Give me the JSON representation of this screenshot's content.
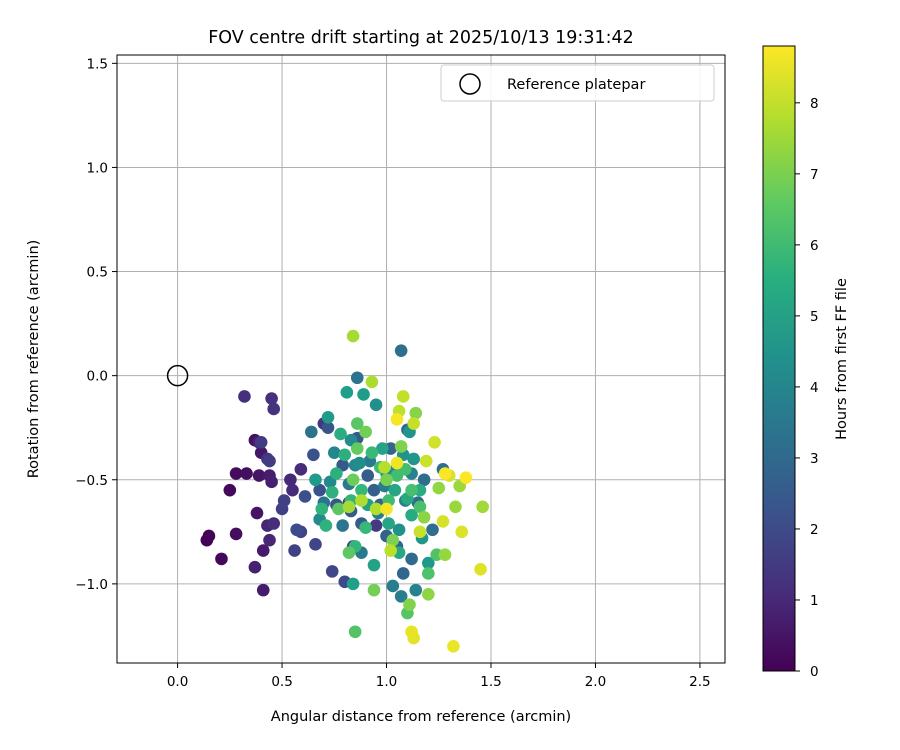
{
  "chart_data": {
    "type": "scatter",
    "title": "FOV centre drift starting at 2025/10/13 19:31:42",
    "xlabel": "Angular distance from reference (arcmin)",
    "ylabel": "Rotation from reference (arcmin)",
    "xlim": [
      -0.29,
      2.62
    ],
    "ylim": [
      -1.38,
      1.54
    ],
    "xticks": [
      0.0,
      0.5,
      1.0,
      1.5,
      2.0,
      2.5
    ],
    "xtick_labels": [
      "0.0",
      "0.5",
      "1.0",
      "1.5",
      "2.0",
      "2.5"
    ],
    "yticks": [
      -1.0,
      -0.5,
      0.0,
      0.5,
      1.0,
      1.5
    ],
    "ytick_labels": [
      "−1.0",
      "−0.5",
      "0.0",
      "0.5",
      "1.0",
      "1.5"
    ],
    "grid": true,
    "legend": {
      "position": "top-right",
      "entries": [
        "Reference platepar"
      ]
    },
    "reference_point": {
      "x": 0.0,
      "y": 0.0,
      "label": "Reference platepar"
    },
    "colorbar": {
      "label": "Hours from first FF file",
      "colormap": "viridis",
      "range": [
        0,
        8.8
      ],
      "ticks": [
        0,
        1,
        2,
        3,
        4,
        5,
        6,
        7,
        8
      ],
      "tick_labels": [
        "0",
        "1",
        "2",
        "3",
        "4",
        "5",
        "6",
        "7",
        "8"
      ]
    },
    "points_note": "each point is [x_arcmin, y_arcmin, hours]",
    "points": [
      [
        0.14,
        -0.79,
        0.05
      ],
      [
        0.15,
        -0.77,
        0.1
      ],
      [
        0.21,
        -0.88,
        0.15
      ],
      [
        0.25,
        -0.55,
        0.2
      ],
      [
        0.28,
        -0.47,
        0.25
      ],
      [
        0.28,
        -0.76,
        0.3
      ],
      [
        0.33,
        -0.47,
        0.35
      ],
      [
        0.37,
        -0.31,
        0.4
      ],
      [
        0.38,
        -0.66,
        0.45
      ],
      [
        0.39,
        -0.48,
        0.5
      ],
      [
        0.4,
        -0.37,
        0.55
      ],
      [
        0.41,
        -0.84,
        0.6
      ],
      [
        0.41,
        -1.03,
        0.65
      ],
      [
        0.44,
        -0.48,
        0.7
      ],
      [
        0.45,
        -0.51,
        0.75
      ],
      [
        0.37,
        -0.92,
        0.8
      ],
      [
        0.39,
        -0.32,
        0.85
      ],
      [
        0.43,
        -0.72,
        0.9
      ],
      [
        0.44,
        -0.79,
        0.95
      ],
      [
        0.54,
        -0.5,
        1.0
      ],
      [
        0.55,
        -0.55,
        1.05
      ],
      [
        0.59,
        -0.45,
        1.1
      ],
      [
        0.46,
        -0.71,
        1.15
      ],
      [
        0.32,
        -0.1,
        1.2
      ],
      [
        0.45,
        -0.11,
        1.25
      ],
      [
        0.46,
        -0.16,
        1.3
      ],
      [
        0.43,
        -0.4,
        1.35
      ],
      [
        0.7,
        -0.23,
        1.4
      ],
      [
        0.82,
        -0.61,
        1.45
      ],
      [
        0.95,
        -0.72,
        1.5
      ],
      [
        0.4,
        -0.32,
        1.55
      ],
      [
        0.44,
        -0.41,
        1.6
      ],
      [
        0.5,
        -0.64,
        1.65
      ],
      [
        0.51,
        -0.6,
        1.7
      ],
      [
        0.56,
        -0.84,
        1.75
      ],
      [
        0.59,
        -0.75,
        1.8
      ],
      [
        0.66,
        -0.81,
        1.85
      ],
      [
        0.74,
        -0.94,
        1.9
      ],
      [
        0.8,
        -0.99,
        1.95
      ],
      [
        0.84,
        -0.82,
        2.0
      ],
      [
        0.57,
        -0.74,
        2.1
      ],
      [
        0.61,
        -0.58,
        2.15
      ],
      [
        0.65,
        -0.38,
        2.2
      ],
      [
        0.68,
        -0.55,
        2.25
      ],
      [
        0.72,
        -0.25,
        2.3
      ],
      [
        0.76,
        -0.62,
        2.35
      ],
      [
        0.79,
        -0.43,
        2.4
      ],
      [
        0.83,
        -0.65,
        2.45
      ],
      [
        0.86,
        -0.3,
        2.5
      ],
      [
        0.88,
        -0.71,
        2.55
      ],
      [
        0.91,
        -0.48,
        2.6
      ],
      [
        0.94,
        -0.55,
        2.65
      ],
      [
        0.97,
        -0.62,
        2.7
      ],
      [
        1.0,
        -0.77,
        2.75
      ],
      [
        1.02,
        -0.35,
        2.8
      ],
      [
        1.05,
        -0.82,
        2.85
      ],
      [
        1.08,
        -0.95,
        2.9
      ],
      [
        1.1,
        -0.26,
        2.95
      ],
      [
        1.12,
        -0.88,
        3.0
      ],
      [
        1.15,
        -0.61,
        3.05
      ],
      [
        1.18,
        -0.5,
        3.1
      ],
      [
        1.22,
        -0.74,
        3.15
      ],
      [
        1.27,
        -0.45,
        3.2
      ],
      [
        1.07,
        0.12,
        3.25
      ],
      [
        0.86,
        -0.01,
        3.3
      ],
      [
        0.64,
        -0.27,
        3.35
      ],
      [
        0.7,
        -0.61,
        3.4
      ],
      [
        0.79,
        -0.72,
        3.45
      ],
      [
        0.82,
        -0.52,
        3.5
      ],
      [
        0.88,
        -0.85,
        3.55
      ],
      [
        0.92,
        -0.41,
        3.6
      ],
      [
        0.96,
        -0.66,
        3.65
      ],
      [
        0.99,
        -0.53,
        3.7
      ],
      [
        1.03,
        -1.01,
        3.75
      ],
      [
        1.07,
        -1.06,
        3.8
      ],
      [
        1.09,
        -0.6,
        3.85
      ],
      [
        1.12,
        -0.47,
        3.9
      ],
      [
        1.14,
        -1.03,
        3.95
      ],
      [
        1.05,
        -0.44,
        4.0
      ],
      [
        0.85,
        -0.43,
        4.05
      ],
      [
        0.75,
        -0.37,
        4.1
      ],
      [
        0.73,
        -0.51,
        4.15
      ],
      [
        0.68,
        -0.69,
        4.2
      ],
      [
        0.83,
        -0.31,
        4.25
      ],
      [
        0.87,
        -0.42,
        4.3
      ],
      [
        0.95,
        -0.14,
        4.35
      ],
      [
        1.0,
        -0.47,
        4.4
      ],
      [
        1.06,
        -0.74,
        4.45
      ],
      [
        1.08,
        -0.38,
        4.5
      ],
      [
        1.11,
        -0.27,
        4.55
      ],
      [
        1.13,
        -0.4,
        4.6
      ],
      [
        1.17,
        -0.78,
        4.65
      ],
      [
        1.2,
        -0.9,
        4.7
      ],
      [
        0.72,
        -0.2,
        4.75
      ],
      [
        0.66,
        -0.5,
        4.8
      ],
      [
        0.89,
        -0.09,
        4.85
      ],
      [
        0.81,
        -0.08,
        4.9
      ],
      [
        0.84,
        -1.0,
        4.95
      ],
      [
        0.91,
        -0.62,
        5.0
      ],
      [
        0.94,
        -0.91,
        5.05
      ],
      [
        0.98,
        -0.35,
        5.1
      ],
      [
        1.01,
        -0.71,
        5.15
      ],
      [
        1.04,
        -0.55,
        5.2
      ],
      [
        1.06,
        -0.85,
        5.25
      ],
      [
        1.1,
        -0.59,
        5.3
      ],
      [
        1.12,
        -0.67,
        5.35
      ],
      [
        1.16,
        -0.55,
        5.4
      ],
      [
        0.78,
        -0.28,
        5.45
      ],
      [
        0.8,
        -0.38,
        5.5
      ],
      [
        0.76,
        -0.47,
        5.55
      ],
      [
        0.74,
        -0.56,
        5.6
      ],
      [
        0.71,
        -0.72,
        5.65
      ],
      [
        0.69,
        -0.64,
        5.7
      ],
      [
        0.83,
        -0.6,
        5.75
      ],
      [
        0.85,
        -0.82,
        5.8
      ],
      [
        0.88,
        -0.55,
        5.85
      ],
      [
        0.9,
        -0.73,
        5.9
      ],
      [
        0.93,
        -0.37,
        5.95
      ],
      [
        0.97,
        -0.44,
        6.0
      ],
      [
        1.01,
        -0.6,
        6.05
      ],
      [
        1.05,
        -0.48,
        6.1
      ],
      [
        1.09,
        -0.45,
        6.15
      ],
      [
        1.12,
        -0.55,
        6.2
      ],
      [
        1.16,
        -0.63,
        6.25
      ],
      [
        1.2,
        -0.95,
        6.3
      ],
      [
        1.24,
        -0.86,
        6.35
      ],
      [
        0.85,
        -1.23,
        6.4
      ],
      [
        1.1,
        -1.14,
        6.45
      ],
      [
        0.86,
        -0.23,
        6.5
      ],
      [
        0.77,
        -0.64,
        6.55
      ],
      [
        0.82,
        -0.85,
        6.6
      ],
      [
        0.86,
        -0.35,
        6.7
      ],
      [
        0.84,
        -0.5,
        6.8
      ],
      [
        0.9,
        -0.27,
        6.9
      ],
      [
        0.94,
        -1.03,
        6.95
      ],
      [
        1.0,
        -0.5,
        7.0
      ],
      [
        1.03,
        -0.79,
        7.05
      ],
      [
        1.07,
        -0.34,
        7.1
      ],
      [
        1.11,
        -1.1,
        7.15
      ],
      [
        1.14,
        -0.18,
        7.2
      ],
      [
        1.18,
        -0.68,
        7.25
      ],
      [
        1.2,
        -1.05,
        7.3
      ],
      [
        1.25,
        -0.54,
        7.35
      ],
      [
        1.28,
        -0.86,
        7.4
      ],
      [
        1.33,
        -0.63,
        7.45
      ],
      [
        1.35,
        -0.53,
        7.5
      ],
      [
        1.46,
        -0.63,
        7.55
      ],
      [
        0.82,
        -0.63,
        7.6
      ],
      [
        0.84,
        0.19,
        7.65
      ],
      [
        0.93,
        -0.03,
        7.7
      ],
      [
        0.88,
        -0.6,
        7.75
      ],
      [
        0.95,
        -0.64,
        7.8
      ],
      [
        0.99,
        -0.44,
        7.85
      ],
      [
        1.02,
        -0.84,
        7.9
      ],
      [
        1.06,
        -0.17,
        7.95
      ],
      [
        1.08,
        -0.1,
        8.0
      ],
      [
        1.13,
        -0.23,
        8.05
      ],
      [
        1.16,
        -0.75,
        8.1
      ],
      [
        1.19,
        -0.41,
        8.15
      ],
      [
        1.23,
        -0.32,
        8.2
      ],
      [
        1.27,
        -0.7,
        8.25
      ],
      [
        1.3,
        -0.48,
        8.3
      ],
      [
        1.36,
        -0.75,
        8.35
      ],
      [
        1.45,
        -0.93,
        8.4
      ],
      [
        1.13,
        -1.26,
        8.45
      ],
      [
        1.12,
        -1.23,
        8.5
      ],
      [
        1.32,
        -1.3,
        8.55
      ],
      [
        1.05,
        -0.42,
        8.6
      ],
      [
        1.0,
        -0.64,
        8.65
      ],
      [
        1.05,
        -0.21,
        8.7
      ],
      [
        1.28,
        -0.47,
        8.75
      ],
      [
        1.38,
        -0.49,
        8.8
      ]
    ]
  }
}
